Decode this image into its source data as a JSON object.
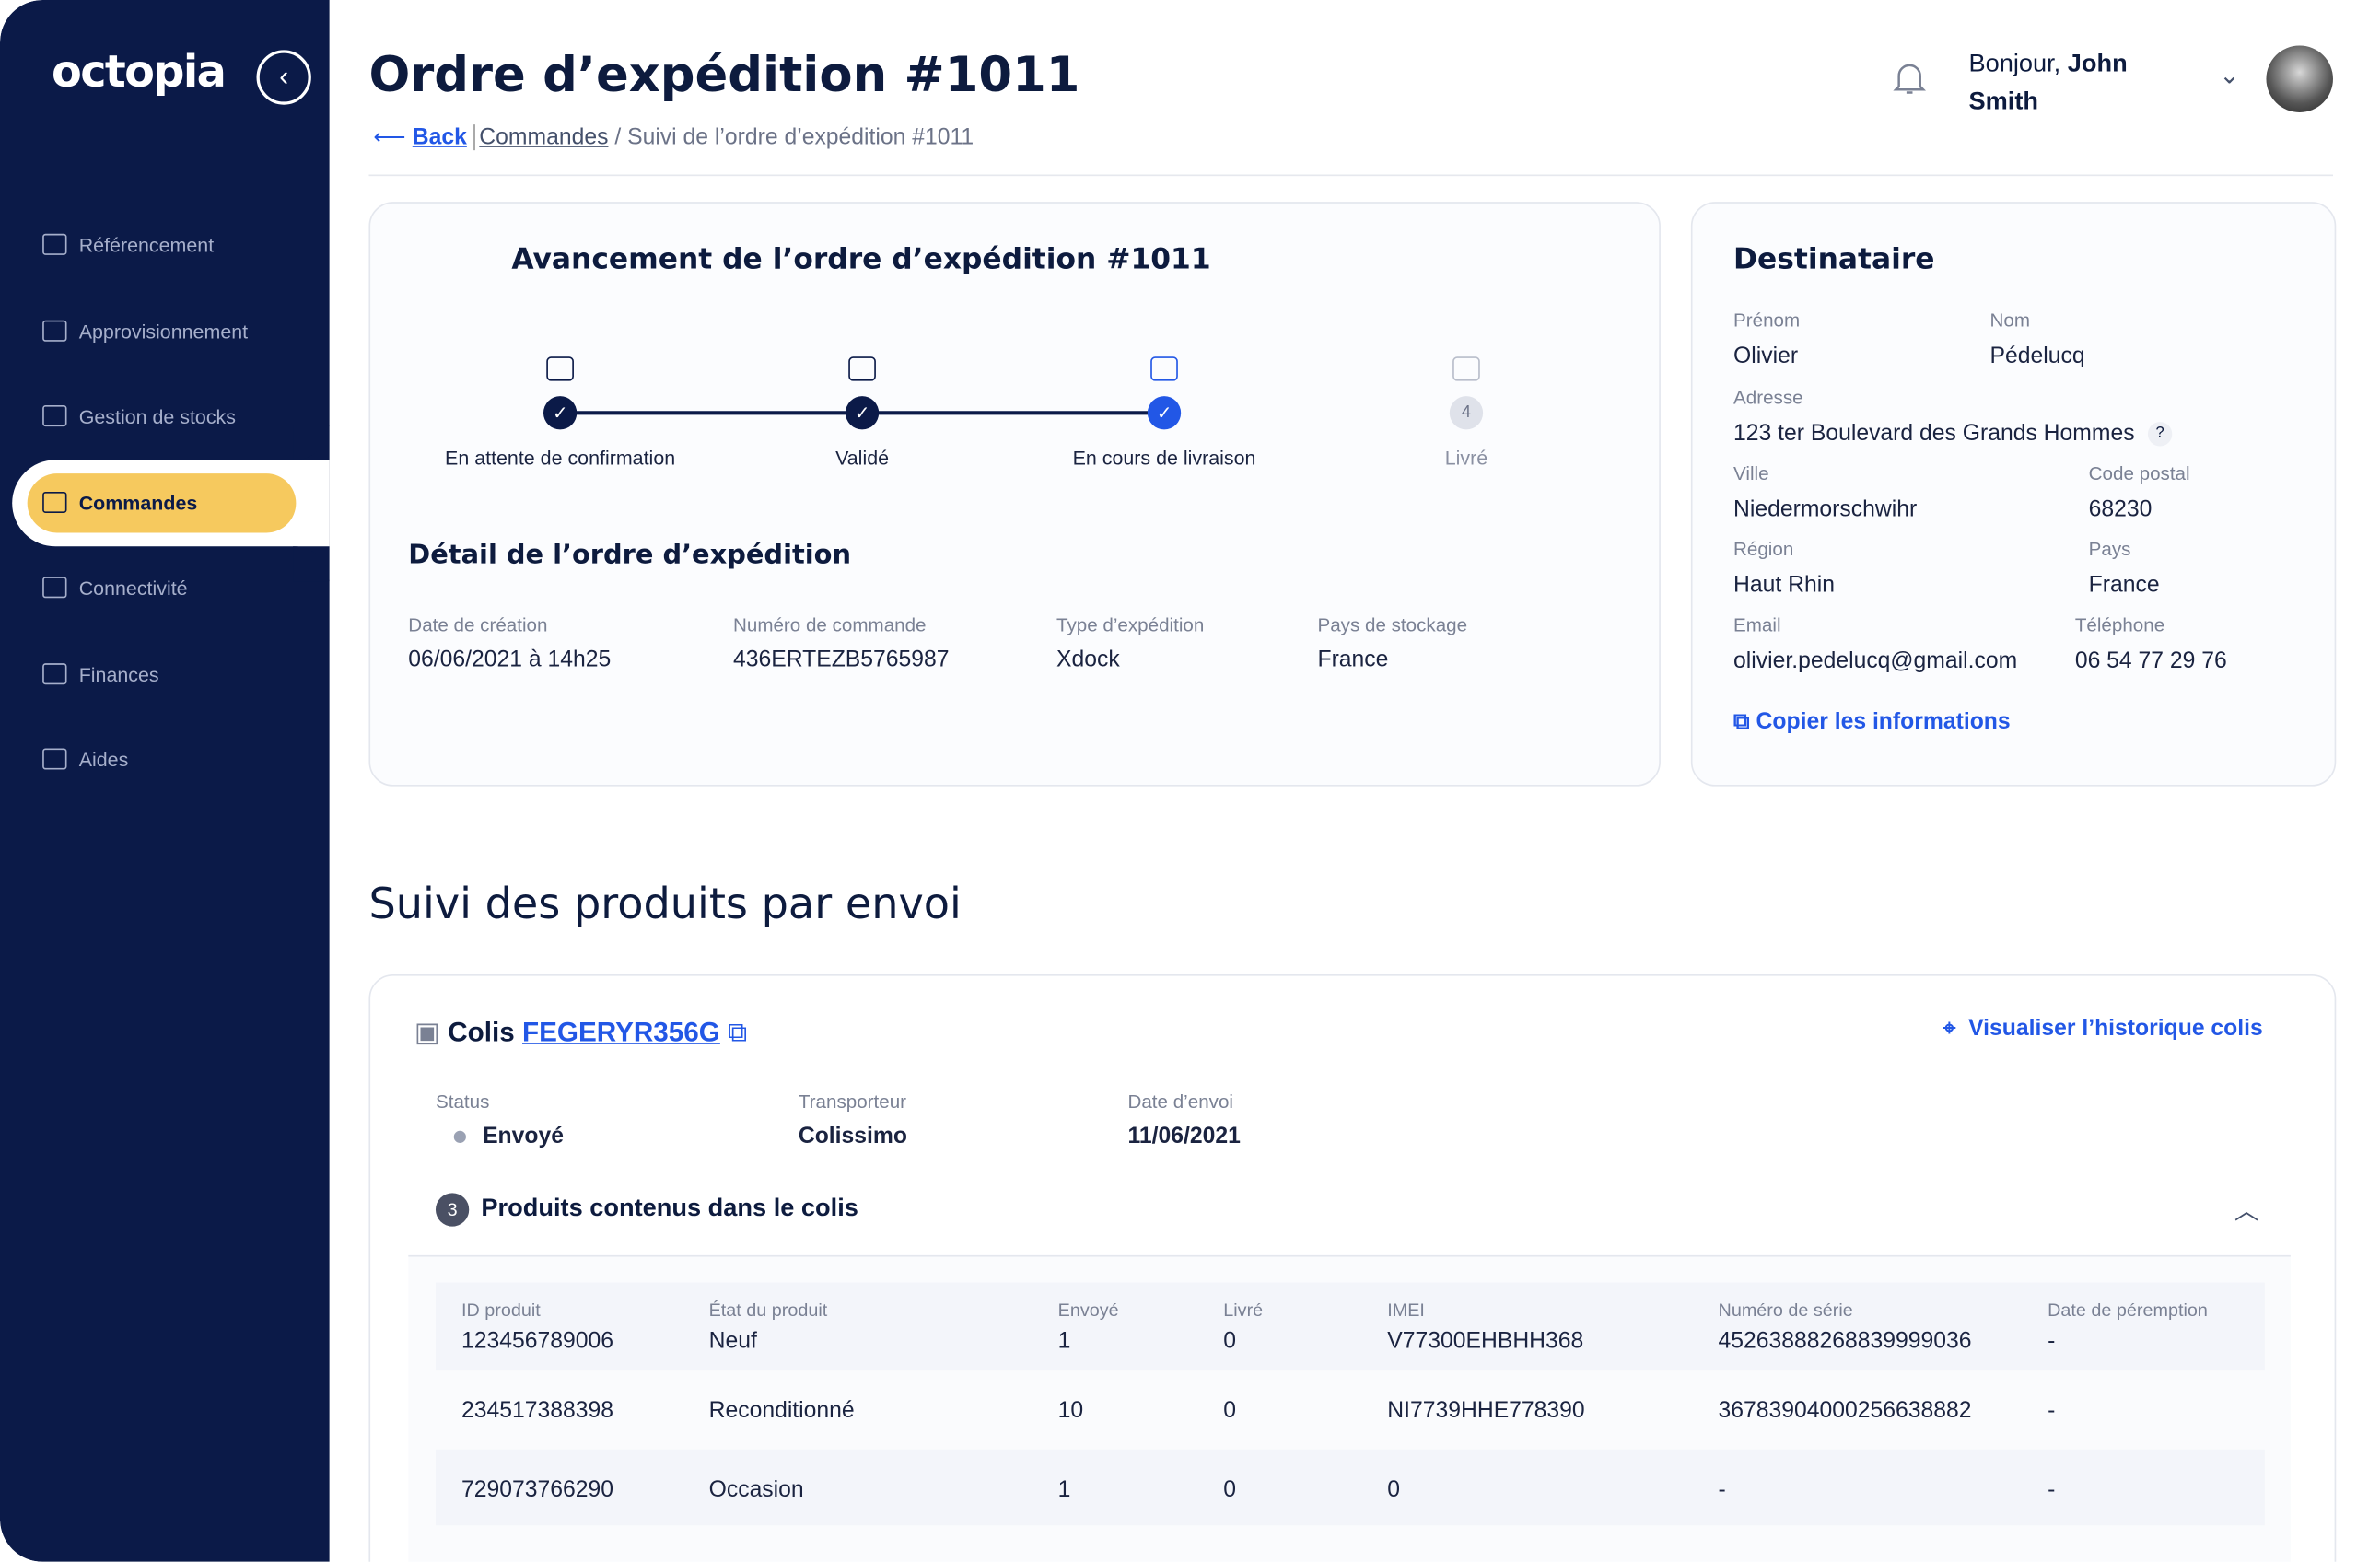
{
  "brand": "octopia",
  "sidebar": {
    "items": [
      "Référencement",
      "Approvisionnement",
      "Gestion de stocks",
      "Commandes",
      "Connectivité",
      "Finances",
      "Aides"
    ]
  },
  "header": {
    "title": "Ordre d’expédition #1011",
    "greeting": "Bonjour,",
    "user": "John Smith"
  },
  "breadcrumb": {
    "back": "Back",
    "parent": "Commandes",
    "separator": "/",
    "current": "Suivi de l’ordre d’expédition #1011"
  },
  "progress": {
    "title": "Avancement de l’ordre d’expédition #1011",
    "steps": [
      {
        "label": "En attente de confirmation"
      },
      {
        "label": "Validé"
      },
      {
        "label": "En cours de livraison"
      },
      {
        "label": "Livré",
        "number": 4
      }
    ]
  },
  "detail": {
    "title": "Détail de l’ordre d’expédition",
    "fields": [
      {
        "label": "Date de création",
        "value": "06/06/2021 à 14h25"
      },
      {
        "label": "Numéro de commande",
        "value": "436ERTEZB5765987"
      },
      {
        "label": "Type d’expédition",
        "value": "Xdock"
      },
      {
        "label": "Pays de stockage",
        "value": "France"
      }
    ]
  },
  "recipient": {
    "title": "Destinataire",
    "help": "?",
    "copy": "Copier les informations",
    "fields": [
      {
        "label": "Prénom",
        "value": "Olivier"
      },
      {
        "label": "Nom",
        "value": "Pédelucq"
      },
      {
        "label": "Adresse",
        "value": "123 ter Boulevard des Grands Hommes"
      },
      {
        "label": "Ville",
        "value": "Niedermorschwihr"
      },
      {
        "label": "Code postal",
        "value": "68230"
      },
      {
        "label": "Région",
        "value": "Haut Rhin"
      },
      {
        "label": "Pays",
        "value": "France"
      },
      {
        "label": "Email",
        "value": "olivier.pedelucq@gmail.com"
      },
      {
        "label": "Téléphone",
        "value": "06 54 77 29 76"
      }
    ]
  },
  "section": {
    "title": "Suivi des produits par envoi"
  },
  "parcel": {
    "label": "Colis",
    "id": "FEGERYR356G",
    "history": "Visualiser l’historique colis",
    "fields": [
      {
        "label": "Status",
        "value": "Envoyé"
      },
      {
        "label": "Transporteur",
        "value": "Colissimo"
      },
      {
        "label": "Date d’envoi",
        "value": "11/06/2021"
      }
    ],
    "products": {
      "count": 3,
      "title": "Produits contenus dans le colis",
      "columns": [
        "ID produit",
        "État du produit",
        "Envoyé",
        "Livré",
        "IMEI",
        "Numéro de série",
        "Date de péremption"
      ],
      "rows": [
        [
          "123456789006",
          "Neuf",
          "1",
          "0",
          "V77300EHBHH368",
          "45263888268839999036",
          "-"
        ],
        [
          "234517388398",
          "Reconditionné",
          "10",
          "0",
          "NI7739HHE778390",
          "36783904000256638882",
          "-"
        ],
        [
          "729073766290",
          "Occasion",
          "1",
          "0",
          "0",
          "-",
          "-"
        ]
      ]
    }
  }
}
